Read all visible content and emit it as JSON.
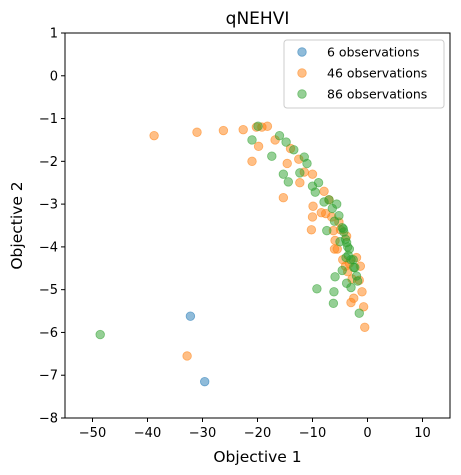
{
  "chart_data": {
    "type": "scatter",
    "title": "qNEHVI",
    "xlabel": "Objective 1",
    "ylabel": "Objective 2",
    "xlim": [
      -55,
      15
    ],
    "ylim": [
      -8,
      1
    ],
    "xticks": [
      -50,
      -40,
      -30,
      -20,
      -10,
      0,
      10
    ],
    "yticks": [
      1,
      0,
      -1,
      -2,
      -3,
      -4,
      -5,
      -6,
      -7,
      -8
    ],
    "xtick_labels": [
      "−50",
      "−40",
      "−30",
      "−20",
      "−10",
      "0",
      "10"
    ],
    "ytick_labels": [
      "1",
      "0",
      "−1",
      "−2",
      "−3",
      "−4",
      "−5",
      "−6",
      "−7",
      "−8"
    ],
    "grid": false,
    "legend_position": "top-right",
    "series": [
      {
        "name": "6 observations",
        "color": "#1f77b4",
        "points": [
          [
            -32.2,
            -5.62
          ],
          [
            -29.6,
            -7.15
          ]
        ]
      },
      {
        "name": "46 observations",
        "color": "#ff7f0e",
        "points": [
          [
            -38.8,
            -1.4
          ],
          [
            -31.0,
            -1.32
          ],
          [
            -26.2,
            -1.28
          ],
          [
            -22.6,
            -1.26
          ],
          [
            -20.2,
            -1.2
          ],
          [
            -18.2,
            -1.18
          ],
          [
            -19.2,
            -1.2
          ],
          [
            -21.0,
            -2.0
          ],
          [
            -19.8,
            -1.65
          ],
          [
            -15.3,
            -2.85
          ],
          [
            -14.6,
            -2.05
          ],
          [
            -12.3,
            -2.5
          ],
          [
            -12.5,
            -1.95
          ],
          [
            -10.0,
            -2.3
          ],
          [
            -9.9,
            -3.05
          ],
          [
            -10.0,
            -3.3
          ],
          [
            -10.2,
            -3.6
          ],
          [
            -7.9,
            -2.7
          ],
          [
            -7.6,
            -3.22
          ],
          [
            -7.0,
            -2.9
          ],
          [
            -6.5,
            -3.3
          ],
          [
            -6.2,
            -3.62
          ],
          [
            -5.9,
            -3.85
          ],
          [
            -5.5,
            -4.05
          ],
          [
            -4.9,
            -3.6
          ],
          [
            -4.5,
            -4.3
          ],
          [
            -4.0,
            -4.45
          ],
          [
            -3.6,
            -4.58
          ],
          [
            -3.3,
            -4.38
          ],
          [
            -3.0,
            -5.3
          ],
          [
            -2.8,
            -4.75
          ],
          [
            -2.5,
            -5.2
          ],
          [
            -2.0,
            -4.25
          ],
          [
            -1.5,
            -4.78
          ],
          [
            -1.3,
            -4.45
          ],
          [
            -1.0,
            -5.05
          ],
          [
            -0.7,
            -5.4
          ],
          [
            -0.5,
            -5.88
          ],
          [
            -3.8,
            -3.75
          ],
          [
            -6.0,
            -4.05
          ],
          [
            -11.5,
            -2.25
          ],
          [
            -16.8,
            -1.5
          ],
          [
            -14.0,
            -1.7
          ],
          [
            -5.2,
            -3.42
          ],
          [
            -32.8,
            -6.55
          ],
          [
            -8.4,
            -3.2
          ]
        ]
      },
      {
        "name": "86 observations",
        "color": "#2ca02c",
        "points": [
          [
            -48.6,
            -6.05
          ],
          [
            -21.0,
            -1.5
          ],
          [
            -19.9,
            -1.18
          ],
          [
            -17.4,
            -1.88
          ],
          [
            -16.0,
            -1.4
          ],
          [
            -15.3,
            -2.3
          ],
          [
            -14.8,
            -1.55
          ],
          [
            -14.4,
            -2.48
          ],
          [
            -13.4,
            -1.73
          ],
          [
            -12.3,
            -2.27
          ],
          [
            -11.5,
            -1.9
          ],
          [
            -11.0,
            -2.05
          ],
          [
            -10.0,
            -2.58
          ],
          [
            -9.5,
            -2.72
          ],
          [
            -8.9,
            -2.5
          ],
          [
            -7.9,
            -2.95
          ],
          [
            -7.0,
            -2.9
          ],
          [
            -6.4,
            -3.1
          ],
          [
            -6.0,
            -3.4
          ],
          [
            -5.6,
            -3.0
          ],
          [
            -5.2,
            -3.27
          ],
          [
            -4.6,
            -3.55
          ],
          [
            -4.3,
            -3.65
          ],
          [
            -4.0,
            -3.82
          ],
          [
            -3.8,
            -3.9
          ],
          [
            -3.6,
            -4.0
          ],
          [
            -3.5,
            -4.2
          ],
          [
            -3.3,
            -4.05
          ],
          [
            -3.0,
            -4.3
          ],
          [
            -2.6,
            -4.3
          ],
          [
            -2.3,
            -4.48
          ],
          [
            -2.0,
            -4.68
          ],
          [
            -1.8,
            -4.8
          ],
          [
            -1.5,
            -5.55
          ],
          [
            -3.8,
            -4.85
          ],
          [
            -4.6,
            -4.55
          ],
          [
            -5.9,
            -4.7
          ],
          [
            -6.1,
            -5.05
          ],
          [
            -6.2,
            -5.32
          ],
          [
            -9.2,
            -4.98
          ],
          [
            -4.4,
            -3.58
          ],
          [
            -3.9,
            -4.25
          ],
          [
            -3.0,
            -4.95
          ],
          [
            -2.5,
            -4.48
          ],
          [
            -7.4,
            -3.62
          ],
          [
            -5.0,
            -3.88
          ]
        ]
      }
    ]
  }
}
